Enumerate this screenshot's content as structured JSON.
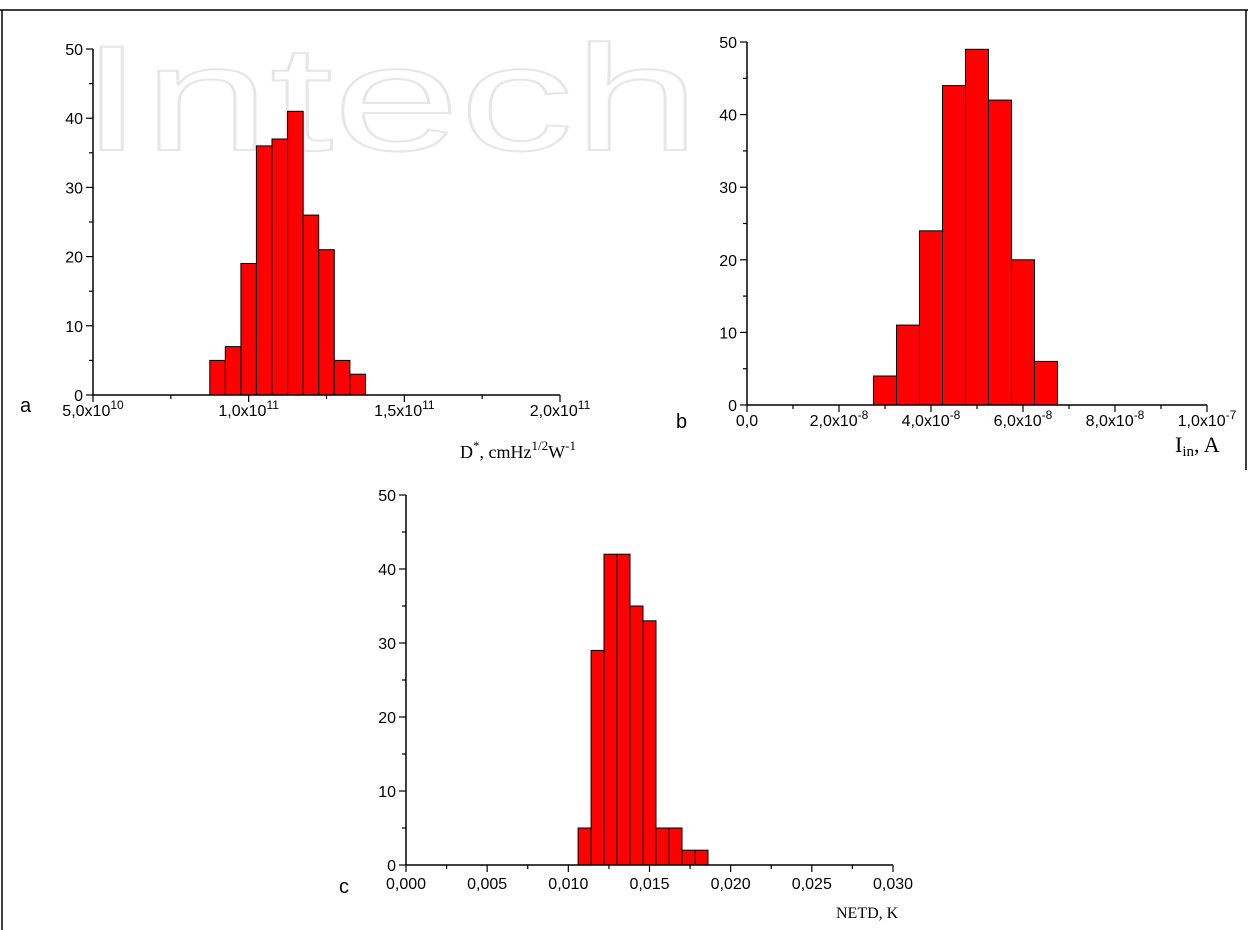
{
  "watermark": "Intech",
  "colors": {
    "bar_fill": "#ff0000",
    "bar_stroke": "#000000",
    "axis": "#000000"
  },
  "chart_data": [
    {
      "id": "a",
      "type": "bar",
      "panel_label": "a",
      "xlabel": "D*, cmHz1/2W-1",
      "xlabel_parts": {
        "base": "D",
        "sup1": "*",
        "mid": ", cmHz",
        "sup2": "1/2",
        "mid2": "W",
        "sup3": "-1"
      },
      "ylabel": "",
      "xlim": [
        50000000000.0,
        200000000000.0
      ],
      "ylim": [
        0,
        50
      ],
      "bin_width": 5000000000.0,
      "xticks": [
        {
          "value": 50000000000.0,
          "mantissa": "5,0x10",
          "exp": "10"
        },
        {
          "value": 100000000000.0,
          "mantissa": "1,0x10",
          "exp": "11"
        },
        {
          "value": 150000000000.0,
          "mantissa": "1,5x10",
          "exp": "11"
        },
        {
          "value": 200000000000.0,
          "mantissa": "2,0x10",
          "exp": "11"
        }
      ],
      "yticks": [
        "0",
        "10",
        "20",
        "30",
        "40",
        "50"
      ],
      "bins": [
        {
          "x": 90000000000.0,
          "count": 5
        },
        {
          "x": 95000000000.0,
          "count": 7
        },
        {
          "x": 100000000000.0,
          "count": 19
        },
        {
          "x": 105000000000.0,
          "count": 36
        },
        {
          "x": 110000000000.0,
          "count": 37
        },
        {
          "x": 115000000000.0,
          "count": 41
        },
        {
          "x": 120000000000.0,
          "count": 26
        },
        {
          "x": 125000000000.0,
          "count": 21
        },
        {
          "x": 130000000000.0,
          "count": 5
        },
        {
          "x": 135000000000.0,
          "count": 3
        }
      ]
    },
    {
      "id": "b",
      "type": "bar",
      "panel_label": "b",
      "xlabel": "Iin, A",
      "xlabel_parts": {
        "base": "I",
        "sub": "in",
        "rest": ", A"
      },
      "ylabel": "",
      "xlim": [
        0,
        1e-07
      ],
      "ylim": [
        0,
        50
      ],
      "bin_width": 5e-09,
      "xticks": [
        {
          "value": 0,
          "mantissa": "0,0",
          "exp": ""
        },
        {
          "value": 2e-08,
          "mantissa": "2,0x10",
          "exp": "-8"
        },
        {
          "value": 4e-08,
          "mantissa": "4,0x10",
          "exp": "-8"
        },
        {
          "value": 6e-08,
          "mantissa": "6,0x10",
          "exp": "-8"
        },
        {
          "value": 8e-08,
          "mantissa": "8,0x10",
          "exp": "-8"
        },
        {
          "value": 1e-07,
          "mantissa": "1,0x10",
          "exp": "-7"
        }
      ],
      "yticks": [
        "0",
        "10",
        "20",
        "30",
        "40",
        "50"
      ],
      "bins": [
        {
          "x": 3e-08,
          "count": 4
        },
        {
          "x": 3.5e-08,
          "count": 11
        },
        {
          "x": 4e-08,
          "count": 24
        },
        {
          "x": 4.5e-08,
          "count": 44
        },
        {
          "x": 5e-08,
          "count": 49
        },
        {
          "x": 5.5e-08,
          "count": 42
        },
        {
          "x": 6e-08,
          "count": 20
        },
        {
          "x": 6.5e-08,
          "count": 6
        }
      ]
    },
    {
      "id": "c",
      "type": "bar",
      "panel_label": "c",
      "xlabel": "NETD, K",
      "ylabel": "",
      "xlim": [
        0,
        0.03
      ],
      "ylim": [
        0,
        50
      ],
      "bin_width": 0.0008,
      "xticks": [
        {
          "value": 0.0,
          "mantissa": "0,000",
          "exp": ""
        },
        {
          "value": 0.005,
          "mantissa": "0,005",
          "exp": ""
        },
        {
          "value": 0.01,
          "mantissa": "0,010",
          "exp": ""
        },
        {
          "value": 0.015,
          "mantissa": "0,015",
          "exp": ""
        },
        {
          "value": 0.02,
          "mantissa": "0,020",
          "exp": ""
        },
        {
          "value": 0.025,
          "mantissa": "0,025",
          "exp": ""
        },
        {
          "value": 0.03,
          "mantissa": "0,030",
          "exp": ""
        }
      ],
      "yticks": [
        "0",
        "10",
        "20",
        "30",
        "40",
        "50"
      ],
      "bins": [
        {
          "x": 0.011,
          "count": 5
        },
        {
          "x": 0.0118,
          "count": 29
        },
        {
          "x": 0.0126,
          "count": 42
        },
        {
          "x": 0.0134,
          "count": 42
        },
        {
          "x": 0.0142,
          "count": 35
        },
        {
          "x": 0.015,
          "count": 33
        },
        {
          "x": 0.0158,
          "count": 5
        },
        {
          "x": 0.0166,
          "count": 5
        },
        {
          "x": 0.0174,
          "count": 2
        },
        {
          "x": 0.0182,
          "count": 2
        }
      ]
    }
  ]
}
